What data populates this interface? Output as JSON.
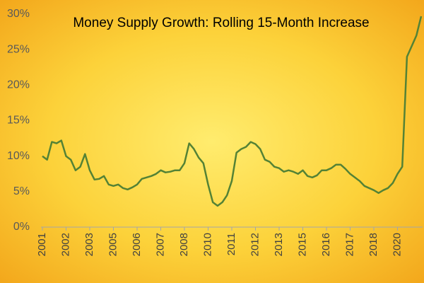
{
  "chart_data": {
    "type": "line",
    "title": "Money Supply Growth: Rolling 15-Month Increase",
    "categories": [
      "2001",
      null,
      null,
      null,
      null,
      "2002",
      null,
      null,
      null,
      null,
      "2003",
      null,
      null,
      null,
      null,
      "2005",
      null,
      null,
      null,
      null,
      "2006",
      null,
      null,
      null,
      null,
      "2007",
      null,
      null,
      null,
      null,
      "2008",
      null,
      null,
      null,
      null,
      "2010",
      null,
      null,
      null,
      null,
      "2011",
      null,
      null,
      null,
      null,
      "2012",
      null,
      null,
      null,
      null,
      "2013",
      null,
      null,
      null,
      null,
      "2015",
      null,
      null,
      null,
      null,
      "2016",
      null,
      null,
      null,
      null,
      "2017",
      null,
      null,
      null,
      null,
      "2018",
      null,
      null,
      null,
      null,
      "2020",
      null,
      null,
      null,
      null,
      null
    ],
    "series": [
      {
        "name": "Money Supply Growth",
        "color": "#548235",
        "values": [
          10,
          9.5,
          12,
          11.8,
          12.2,
          10,
          9.5,
          8,
          8.5,
          10.3,
          8,
          6.7,
          6.8,
          7.2,
          6,
          5.8,
          6,
          5.5,
          5.3,
          5.6,
          6,
          6.8,
          7,
          7.2,
          7.5,
          8,
          7.7,
          7.8,
          8,
          8,
          9,
          11.8,
          11,
          9.8,
          9,
          6,
          3.5,
          3,
          3.5,
          4.5,
          6.5,
          10.5,
          11,
          11.3,
          12,
          11.7,
          11,
          9.5,
          9.2,
          8.5,
          8.3,
          7.8,
          8,
          7.8,
          7.5,
          8,
          7.2,
          7,
          7.3,
          8,
          8,
          8.3,
          8.8,
          8.8,
          8.2,
          7.5,
          7,
          6.5,
          5.8,
          5.5,
          5.2,
          4.8,
          5.2,
          5.5,
          6.2,
          7.5,
          8.5,
          24,
          25.5,
          27,
          29.7
        ]
      }
    ],
    "ylim": [
      0,
      30
    ],
    "yticks": [
      {
        "value": 0,
        "label": "0%"
      },
      {
        "value": 5,
        "label": "5%"
      },
      {
        "value": 10,
        "label": "10%"
      },
      {
        "value": 15,
        "label": "15%"
      },
      {
        "value": 20,
        "label": "20%"
      },
      {
        "value": 25,
        "label": "25%"
      },
      {
        "value": 30,
        "label": "30%"
      }
    ],
    "grid": false
  }
}
